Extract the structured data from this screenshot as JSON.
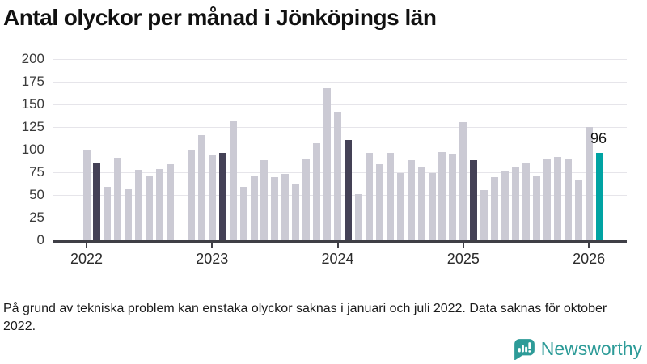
{
  "title": "Antal olyckor per månad i Jönköpings län",
  "footnote": "På grund av tekniska problem kan enstaka olyckor saknas i januari och juli 2022. Data saknas för oktober 2022.",
  "branding": {
    "logo_text": "Newsworthy",
    "logo_icon": "speech-bubble-bar-chart-icon"
  },
  "colors": {
    "bar": "#cbcad4",
    "bar_highlight": "#444156",
    "bar_current": "#00a3a3",
    "gridline": "#e6e5ea",
    "axis": "#3f3f46",
    "logo": "#2d9b98"
  },
  "chart_data": {
    "type": "bar",
    "title": "Antal olyckor per månad i Jönköpings län",
    "xlabel": "",
    "ylabel": "",
    "ylim": [
      0,
      200
    ],
    "yticks": [
      0,
      25,
      50,
      75,
      100,
      125,
      150,
      175,
      200
    ],
    "grid": true,
    "legend": false,
    "x_year_ticks": [
      "2022",
      "2023",
      "2024",
      "2025",
      "2026"
    ],
    "annotation": {
      "text": "96",
      "month": "2026-02"
    },
    "note": "one bar per month; February of each year highlighted dark; latest month teal; 2022-10 missing",
    "points": [
      {
        "month": "2022-01",
        "value": 100,
        "style": "normal"
      },
      {
        "month": "2022-02",
        "value": 86,
        "style": "highlight"
      },
      {
        "month": "2022-03",
        "value": 59,
        "style": "normal"
      },
      {
        "month": "2022-04",
        "value": 91,
        "style": "normal"
      },
      {
        "month": "2022-05",
        "value": 56,
        "style": "normal"
      },
      {
        "month": "2022-06",
        "value": 78,
        "style": "normal"
      },
      {
        "month": "2022-07",
        "value": 71,
        "style": "normal"
      },
      {
        "month": "2022-08",
        "value": 79,
        "style": "normal"
      },
      {
        "month": "2022-09",
        "value": 84,
        "style": "normal"
      },
      {
        "month": "2022-10",
        "value": null,
        "style": "missing"
      },
      {
        "month": "2022-11",
        "value": 99,
        "style": "normal"
      },
      {
        "month": "2022-12",
        "value": 116,
        "style": "normal"
      },
      {
        "month": "2023-01",
        "value": 94,
        "style": "normal"
      },
      {
        "month": "2023-02",
        "value": 96,
        "style": "highlight"
      },
      {
        "month": "2023-03",
        "value": 132,
        "style": "normal"
      },
      {
        "month": "2023-04",
        "value": 59,
        "style": "normal"
      },
      {
        "month": "2023-05",
        "value": 71,
        "style": "normal"
      },
      {
        "month": "2023-06",
        "value": 88,
        "style": "normal"
      },
      {
        "month": "2023-07",
        "value": 70,
        "style": "normal"
      },
      {
        "month": "2023-08",
        "value": 73,
        "style": "normal"
      },
      {
        "month": "2023-09",
        "value": 62,
        "style": "normal"
      },
      {
        "month": "2023-10",
        "value": 89,
        "style": "normal"
      },
      {
        "month": "2023-11",
        "value": 107,
        "style": "normal"
      },
      {
        "month": "2023-12",
        "value": 168,
        "style": "normal"
      },
      {
        "month": "2024-01",
        "value": 141,
        "style": "normal"
      },
      {
        "month": "2024-02",
        "value": 111,
        "style": "highlight"
      },
      {
        "month": "2024-03",
        "value": 51,
        "style": "normal"
      },
      {
        "month": "2024-04",
        "value": 96,
        "style": "normal"
      },
      {
        "month": "2024-05",
        "value": 84,
        "style": "normal"
      },
      {
        "month": "2024-06",
        "value": 96,
        "style": "normal"
      },
      {
        "month": "2024-07",
        "value": 74,
        "style": "normal"
      },
      {
        "month": "2024-08",
        "value": 88,
        "style": "normal"
      },
      {
        "month": "2024-09",
        "value": 81,
        "style": "normal"
      },
      {
        "month": "2024-10",
        "value": 74,
        "style": "normal"
      },
      {
        "month": "2024-11",
        "value": 97,
        "style": "normal"
      },
      {
        "month": "2024-12",
        "value": 95,
        "style": "normal"
      },
      {
        "month": "2025-01",
        "value": 130,
        "style": "normal"
      },
      {
        "month": "2025-02",
        "value": 88,
        "style": "highlight"
      },
      {
        "month": "2025-03",
        "value": 55,
        "style": "normal"
      },
      {
        "month": "2025-04",
        "value": 70,
        "style": "normal"
      },
      {
        "month": "2025-05",
        "value": 77,
        "style": "normal"
      },
      {
        "month": "2025-06",
        "value": 81,
        "style": "normal"
      },
      {
        "month": "2025-07",
        "value": 86,
        "style": "normal"
      },
      {
        "month": "2025-08",
        "value": 71,
        "style": "normal"
      },
      {
        "month": "2025-09",
        "value": 90,
        "style": "normal"
      },
      {
        "month": "2025-10",
        "value": 92,
        "style": "normal"
      },
      {
        "month": "2025-11",
        "value": 89,
        "style": "normal"
      },
      {
        "month": "2025-12",
        "value": 67,
        "style": "normal"
      },
      {
        "month": "2026-01",
        "value": 125,
        "style": "normal"
      },
      {
        "month": "2026-02",
        "value": 96,
        "style": "current"
      }
    ]
  }
}
